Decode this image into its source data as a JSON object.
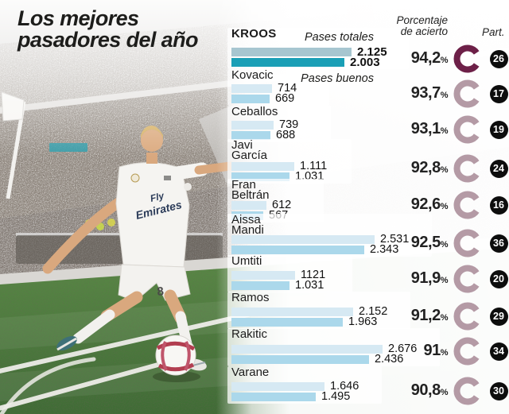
{
  "title": {
    "line1": "Los mejores",
    "line2": "pasadores del año"
  },
  "column_headers": {
    "accuracy_line1": "Porcentaje",
    "accuracy_line2": "de acierto",
    "participation": "Part.",
    "percent_suffix": "%"
  },
  "legend": {
    "total_passes": "Pases totales",
    "good_passes": "Pases buenos"
  },
  "photo": {
    "jersey_sponsor_line1": "Fly",
    "jersey_sponsor_line2": "Emirates",
    "shorts_number": "8"
  },
  "colors": {
    "highlight_total_bar": "#a7c6d0",
    "highlight_good_bar": "#1a9fb6",
    "total_bar": "#d6e9f3",
    "good_bar": "#abd8eb",
    "highlight_donut": "#6d2048",
    "donut": "#b49aa5",
    "badge_bg": "#0d0d0d",
    "badge_text": "#ffffff"
  },
  "chart_data": {
    "type": "bar",
    "orientation": "horizontal",
    "series_labels": [
      "Pases totales",
      "Pases buenos"
    ],
    "value_note": "accuracy shown as percent, matches shown in black badge",
    "players": [
      {
        "name": "Kroos",
        "name_lines": [
          "KROOS"
        ],
        "total": 2125,
        "good": 2003,
        "total_display": "2.125",
        "good_display": "2.003",
        "accuracy": "94,2",
        "accuracy_value": 94.2,
        "matches": "26",
        "highlight": true
      },
      {
        "name": "Kovacic",
        "name_lines": [
          "Kovacic"
        ],
        "total": 714,
        "good": 669,
        "total_display": "714",
        "good_display": "669",
        "accuracy": "93,7",
        "accuracy_value": 93.7,
        "matches": "17",
        "highlight": false
      },
      {
        "name": "Ceballos",
        "name_lines": [
          "Ceballos"
        ],
        "total": 739,
        "good": 688,
        "total_display": "739",
        "good_display": "688",
        "accuracy": "93,1",
        "accuracy_value": 93.1,
        "matches": "19",
        "highlight": false
      },
      {
        "name": "Javi García",
        "name_lines": [
          "Javi",
          "García"
        ],
        "total": 1111,
        "good": 1031,
        "total_display": "1.111",
        "good_display": "1.031",
        "accuracy": "92,8",
        "accuracy_value": 92.8,
        "matches": "24",
        "highlight": false
      },
      {
        "name": "Fran Beltrán",
        "name_lines": [
          "Fran",
          "Beltrán"
        ],
        "total": 612,
        "good": 567,
        "total_display": "612",
        "good_display": "567",
        "accuracy": "92,6",
        "accuracy_value": 92.6,
        "matches": "16",
        "highlight": false
      },
      {
        "name": "Aissa Mandi",
        "name_lines": [
          "Aissa",
          "Mandi"
        ],
        "total": 2531,
        "good": 2343,
        "total_display": "2.531",
        "good_display": "2.343",
        "accuracy": "92,5",
        "accuracy_value": 92.5,
        "matches": "36",
        "highlight": false
      },
      {
        "name": "Umtiti",
        "name_lines": [
          "Umtiti"
        ],
        "total": 1121,
        "good": 1031,
        "total_display": "1121",
        "good_display": "1.031",
        "accuracy": "91,9",
        "accuracy_value": 91.9,
        "matches": "20",
        "highlight": false
      },
      {
        "name": "Ramos",
        "name_lines": [
          "Ramos"
        ],
        "total": 2152,
        "good": 1963,
        "total_display": "2.152",
        "good_display": "1.963",
        "accuracy": "91,2",
        "accuracy_value": 91.2,
        "matches": "29",
        "highlight": false
      },
      {
        "name": "Rakitic",
        "name_lines": [
          "Rakitic"
        ],
        "total": 2676,
        "good": 2436,
        "total_display": "2.676",
        "good_display": "2.436",
        "accuracy": "91",
        "accuracy_value": 91.0,
        "matches": "34",
        "highlight": false
      },
      {
        "name": "Varane",
        "name_lines": [
          "Varane"
        ],
        "total": 1646,
        "good": 1495,
        "total_display": "1.646",
        "good_display": "1.495",
        "accuracy": "90,8",
        "accuracy_value": 90.8,
        "matches": "30",
        "highlight": false
      }
    ]
  }
}
